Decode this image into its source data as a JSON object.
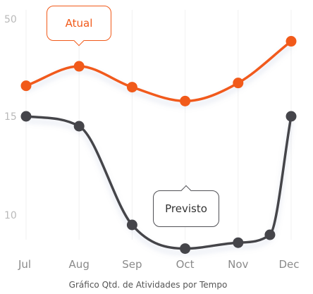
{
  "chart_data": {
    "type": "line",
    "title": "",
    "xlabel": "Gráfico Qtd. de Atividades por Tempo",
    "ylabel": "",
    "yticks": [
      "50",
      "15",
      "10"
    ],
    "grid": true,
    "legend": "none",
    "categories": [
      "Jul",
      "Aug",
      "Sep",
      "Oct",
      "Nov",
      "Dec"
    ],
    "series": [
      {
        "name": "Atual",
        "color": "#f15a1a",
        "x": [
          0,
          1,
          2,
          3,
          4,
          5
        ],
        "values": [
          26.0,
          33.0,
          25.5,
          20.5,
          27.0,
          42.0
        ]
      },
      {
        "name": "Previsto",
        "color": "#45454a",
        "x": [
          0,
          1,
          2,
          3,
          4,
          4.6,
          5
        ],
        "values": [
          15.0,
          14.5,
          9.5,
          8.3,
          8.6,
          9.0,
          15.0
        ]
      }
    ],
    "callouts": [
      {
        "label": "Atual",
        "series": "Atual",
        "point": 1,
        "border_color": "#f15a1a",
        "text_color": "#f15a1a"
      },
      {
        "label": "Previsto",
        "series": "Previsto",
        "point": 3,
        "border_color": "#505055",
        "text_color": "#333333"
      }
    ]
  }
}
